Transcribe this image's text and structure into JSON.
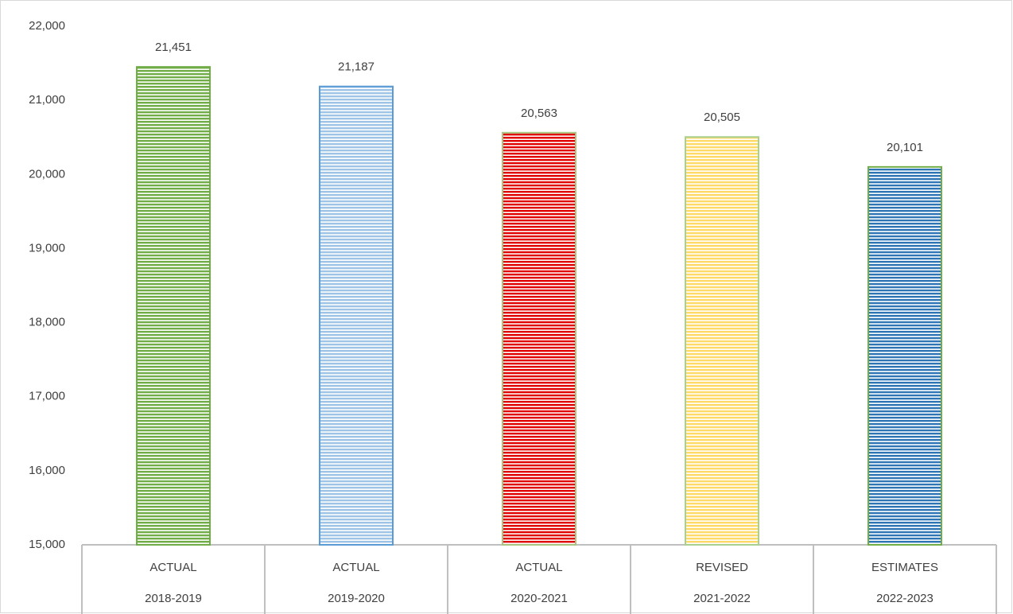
{
  "chart_data": {
    "type": "bar",
    "categories": [
      [
        "ACTUAL",
        "2018-2019"
      ],
      [
        "ACTUAL",
        "2019-2020"
      ],
      [
        "ACTUAL",
        "2020-2021"
      ],
      [
        "REVISED",
        "2021-2022"
      ],
      [
        "ESTIMATES",
        "2022-2023"
      ]
    ],
    "values": [
      21451,
      21187,
      20563,
      20505,
      20101
    ],
    "value_labels": [
      "21,451",
      "21,187",
      "20,563",
      "20,505",
      "20,101"
    ],
    "colors": [
      "#70ad47",
      "#9dc3e6",
      "#e00000",
      "#ffd966",
      "#2e75b6"
    ],
    "edge_colors": [
      "#70ad47",
      "#5b9bd5",
      "#a9c47f",
      "#a9d18e",
      "#70ad47"
    ],
    "ylim": [
      15000,
      22000
    ],
    "yticks": [
      {
        "value": 15000,
        "label": "15,000"
      },
      {
        "value": 16000,
        "label": "16,000"
      },
      {
        "value": 17000,
        "label": "17,000"
      },
      {
        "value": 18000,
        "label": "18,000"
      },
      {
        "value": 19000,
        "label": "19,000"
      },
      {
        "value": 20000,
        "label": "20,000"
      },
      {
        "value": 21000,
        "label": "21,000"
      },
      {
        "value": 22000,
        "label": "22,000"
      }
    ],
    "grid": false
  }
}
